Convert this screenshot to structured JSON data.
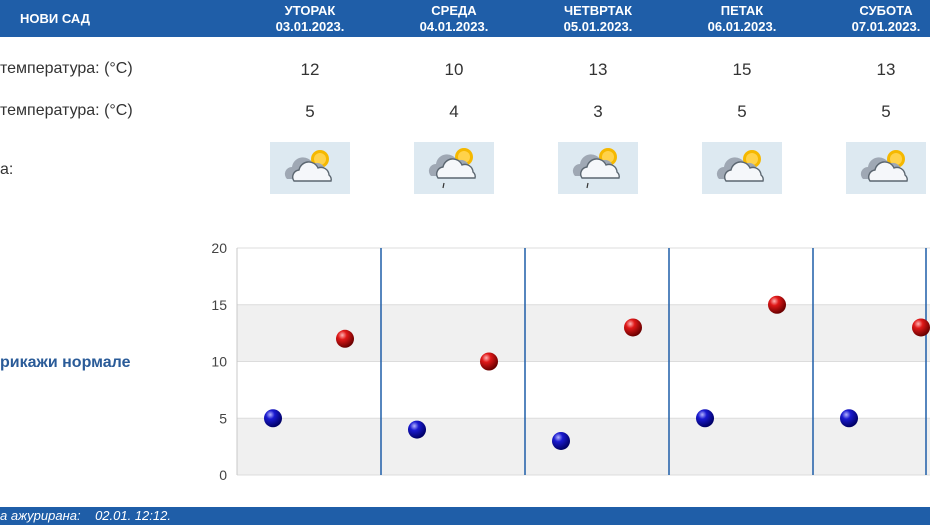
{
  "header": {
    "city": "НОВИ САД",
    "days": [
      {
        "name": "УТОРАК",
        "date": "03.01.2023."
      },
      {
        "name": "СРЕДА",
        "date": "04.01.2023."
      },
      {
        "name": "ЧЕТВРТАК",
        "date": "05.01.2023."
      },
      {
        "name": "ПЕТАК",
        "date": "06.01.2023."
      },
      {
        "name": "СУБОТА",
        "date": "07.01.2023."
      }
    ]
  },
  "rows": {
    "max_label": "температура: (°C)",
    "min_label": "температура: (°C)",
    "weather_label": "а:",
    "max": [
      "12",
      "10",
      "13",
      "15",
      "13"
    ],
    "min": [
      "5",
      "4",
      "3",
      "5",
      "5"
    ],
    "icons": [
      "partly-cloudy-icon",
      "partly-cloudy-light-rain-icon",
      "partly-cloudy-light-rain-icon",
      "partly-cloudy-icon",
      "partly-cloudy-icon"
    ]
  },
  "normals_link": "рикажи нормале",
  "footer": {
    "label": "а ажурирана:",
    "value": "02.01. 12:12."
  },
  "colors": {
    "header_bg": "#1f5ea8",
    "max_dot": "#d01010",
    "min_dot": "#1010c0",
    "grid_band": "#f0f0f0",
    "day_separator": "#1f5ea8"
  },
  "chart_data": {
    "type": "scatter",
    "categories": [
      "03.01.2023.",
      "04.01.2023.",
      "05.01.2023.",
      "06.01.2023.",
      "07.01.2023."
    ],
    "series": [
      {
        "values": [
          5,
          4,
          3,
          5,
          5
        ]
      },
      {
        "values": [
          12,
          10,
          13,
          15,
          13
        ]
      }
    ],
    "ylim": [
      0,
      20
    ],
    "yticks": [
      "0",
      "5",
      "10",
      "15",
      "20"
    ],
    "grid": true
  }
}
